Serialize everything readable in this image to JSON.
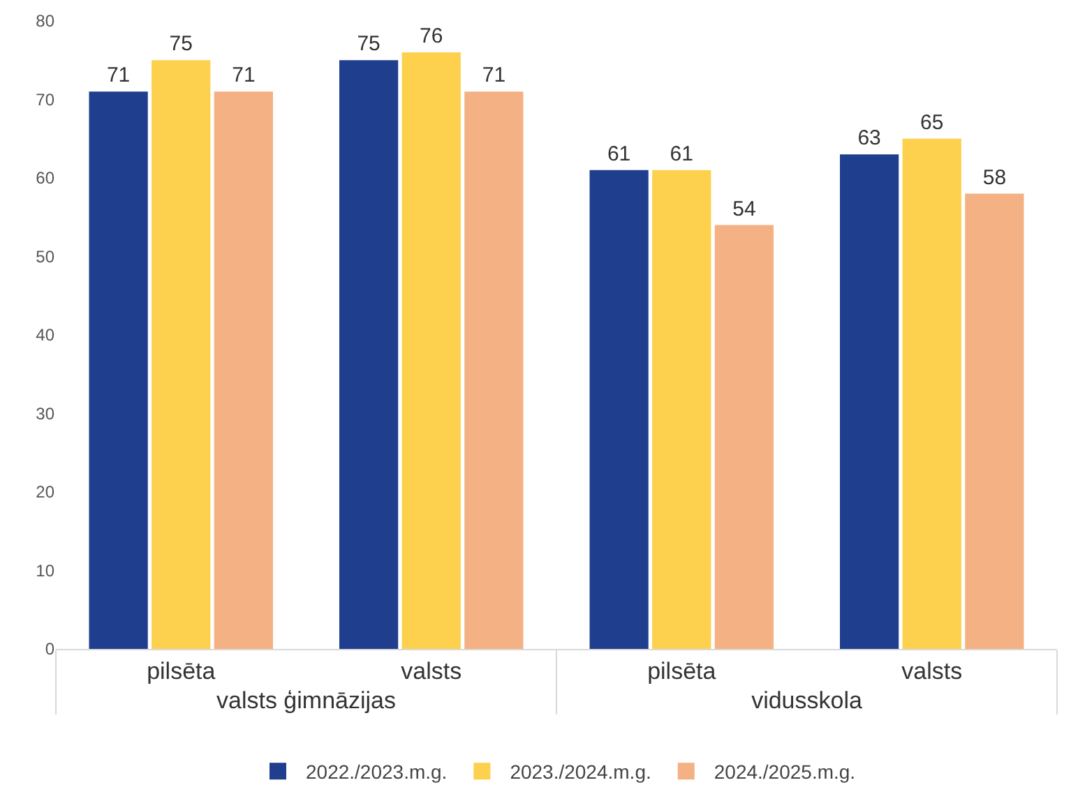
{
  "chart_data": {
    "type": "bar",
    "categories": [
      "pilsēta",
      "valsts",
      "pilsēta",
      "valsts"
    ],
    "annotations": [
      "valsts ģimnāzijas",
      "vidusskola"
    ],
    "series": [
      {
        "name": "2022./2023.m.g.",
        "color": "#1f3e8e",
        "values": [
          71,
          75,
          61,
          63
        ]
      },
      {
        "name": "2023./2024.m.g.",
        "color": "#fdd14e",
        "values": [
          75,
          76,
          61,
          65
        ]
      },
      {
        "name": "2024./2025.m.g.",
        "color": "#f4b183",
        "values": [
          71,
          71,
          54,
          58
        ]
      }
    ],
    "ylim": [
      0,
      80
    ],
    "yticks": [
      0,
      10,
      20,
      30,
      40,
      50,
      60,
      70,
      80
    ],
    "data_labels": true,
    "grid": false,
    "legend": "bottom"
  }
}
